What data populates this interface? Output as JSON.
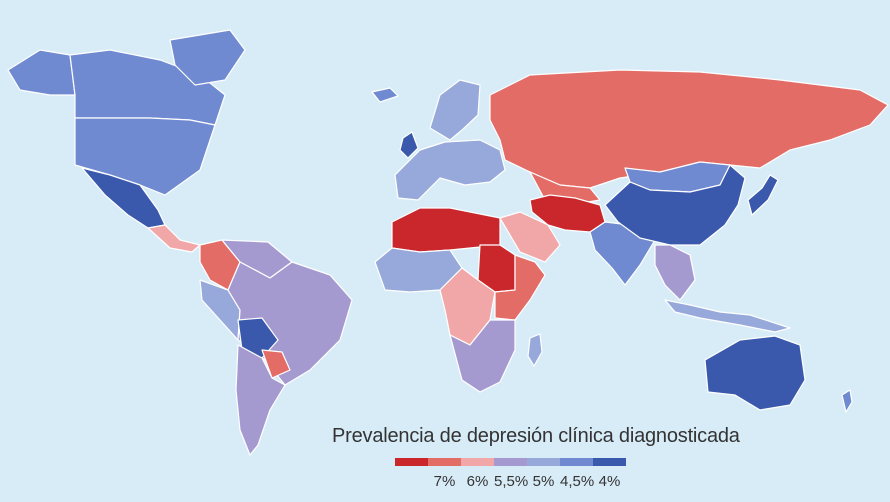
{
  "legend": {
    "title": "Prevalencia de depresión clínica diagnosticada",
    "classes": [
      {
        "color": "#c9272b"
      },
      {
        "label": "7%",
        "color": "#e36c66"
      },
      {
        "label": "6%",
        "color": "#f1a7a8"
      },
      {
        "label": "5,5%",
        "color": "#a59ad0"
      },
      {
        "label": "5%",
        "color": "#97a9da"
      },
      {
        "label": "4,5%",
        "color": "#6f8ad0"
      },
      {
        "label": "4%",
        "color": "#3a59ac"
      }
    ]
  },
  "colors": {
    "ocean": "#d8ecf8",
    "border": "#ffffff"
  },
  "regions": [
    {
      "name": "canada",
      "cls": 5
    },
    {
      "name": "alaska",
      "cls": 5
    },
    {
      "name": "usa",
      "cls": 5
    },
    {
      "name": "mexico",
      "cls": 6
    },
    {
      "name": "central-america",
      "cls": 2
    },
    {
      "name": "colombia",
      "cls": 1
    },
    {
      "name": "venezuela",
      "cls": 3
    },
    {
      "name": "peru",
      "cls": 4
    },
    {
      "name": "brazil",
      "cls": 3
    },
    {
      "name": "bolivia",
      "cls": 6
    },
    {
      "name": "paraguay",
      "cls": 1
    },
    {
      "name": "southern-cone",
      "cls": 3
    },
    {
      "name": "greenland",
      "cls": 5
    },
    {
      "name": "iceland",
      "cls": 5
    },
    {
      "name": "scandinavia",
      "cls": 4
    },
    {
      "name": "uk",
      "cls": 6
    },
    {
      "name": "europe",
      "cls": 4
    },
    {
      "name": "russia",
      "cls": 1
    },
    {
      "name": "kazakhstan",
      "cls": 1
    },
    {
      "name": "north-africa",
      "cls": 0
    },
    {
      "name": "west-africa",
      "cls": 4
    },
    {
      "name": "sudan",
      "cls": 0
    },
    {
      "name": "central-africa",
      "cls": 2
    },
    {
      "name": "east-africa",
      "cls": 1
    },
    {
      "name": "southern-africa",
      "cls": 3
    },
    {
      "name": "madagascar",
      "cls": 4
    },
    {
      "name": "arabia",
      "cls": 2
    },
    {
      "name": "iran-afghanistan",
      "cls": 0
    },
    {
      "name": "india",
      "cls": 5
    },
    {
      "name": "china",
      "cls": 6
    },
    {
      "name": "mongolia",
      "cls": 5
    },
    {
      "name": "japan",
      "cls": 6
    },
    {
      "name": "se-asia",
      "cls": 3
    },
    {
      "name": "indonesia",
      "cls": 4
    },
    {
      "name": "australia",
      "cls": 6
    },
    {
      "name": "new-zealand",
      "cls": 5
    }
  ]
}
